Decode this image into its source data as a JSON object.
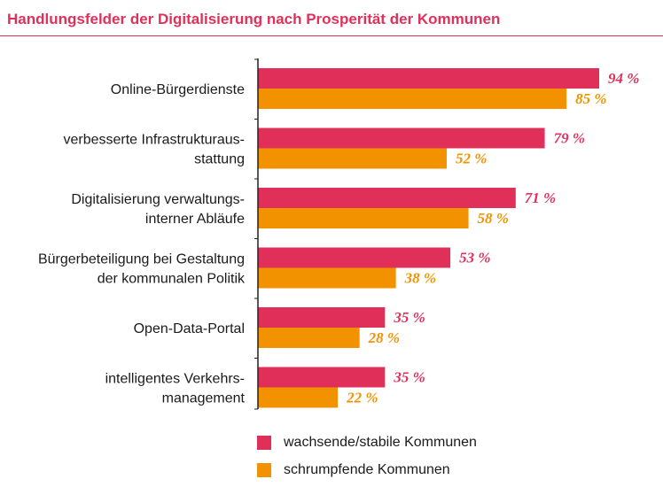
{
  "title": "Handlungsfelder der Digitalisierung nach Prosperität der Kommunen",
  "colors": {
    "accent": "#e0305a",
    "series1": "#e0305a",
    "series2": "#f39200",
    "axis": "#222222"
  },
  "chart_data": {
    "type": "bar",
    "orientation": "horizontal",
    "title": "Handlungsfelder der Digitalisierung nach Prosperität der Kommunen",
    "xlim": [
      0,
      100
    ],
    "value_suffix": " %",
    "categories": [
      [
        "Online-Bürgerdienste"
      ],
      [
        "verbesserte Infrastrukturaus-",
        "stattung"
      ],
      [
        "Digitalisierung verwaltungs-",
        "interner Abläufe"
      ],
      [
        "Bürgerbeteiligung bei Gestaltung",
        "der kommunalen Politik"
      ],
      [
        "Open-Data-Portal"
      ],
      [
        "intelligentes Verkehrs-",
        "management"
      ]
    ],
    "series": [
      {
        "name": "wachsende/stabile Kommunen",
        "color": "#e0305a",
        "values": [
          94,
          79,
          71,
          53,
          35,
          35
        ]
      },
      {
        "name": "schrumpfende Kommunen",
        "color": "#f39200",
        "values": [
          85,
          52,
          58,
          38,
          28,
          22
        ]
      }
    ],
    "legend_position": "bottom"
  }
}
